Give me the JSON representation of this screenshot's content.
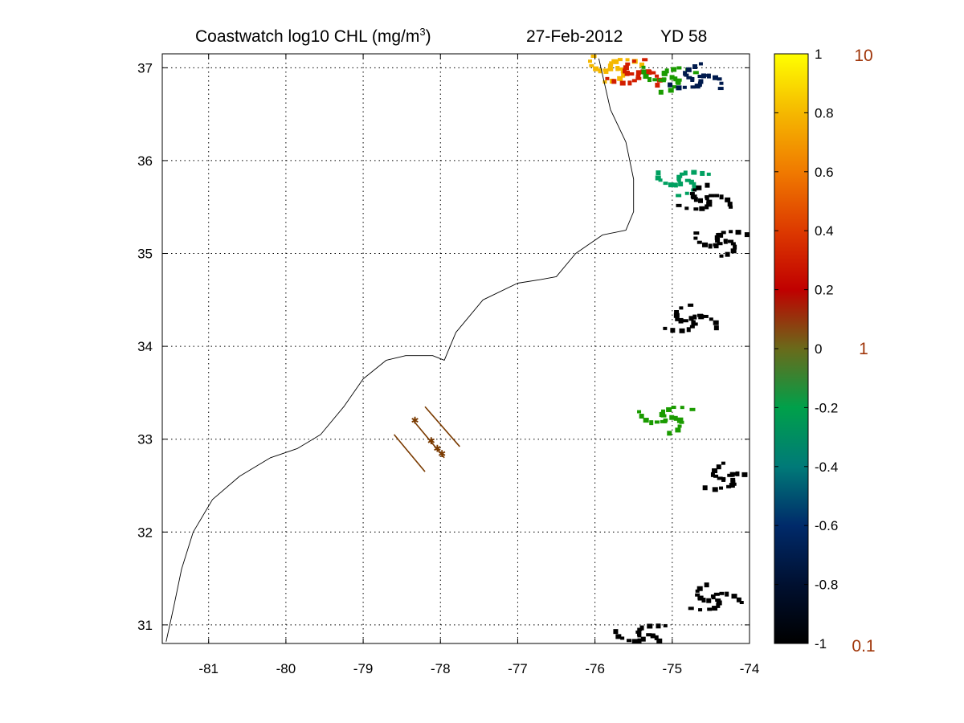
{
  "header": {
    "title_prefix": "Coastwatch  log10  CHL (mg/m",
    "title_superscript": "3",
    "title_suffix": ")",
    "date": "27-Feb-2012",
    "year_day": "YD 58"
  },
  "map": {
    "lon_range": [
      -81.6,
      -74
    ],
    "lat_range": [
      30.8,
      37.15
    ],
    "x_ticks": [
      -81,
      -80,
      -79,
      -78,
      -77,
      -76,
      -75,
      -74
    ],
    "x_tick_labels": [
      "-81",
      "-80",
      "-79",
      "-78",
      "-77",
      "-76",
      "-75",
      "-74"
    ],
    "y_ticks": [
      31,
      32,
      33,
      34,
      35,
      36,
      37
    ],
    "y_tick_labels": [
      "31",
      "32",
      "33",
      "34",
      "35",
      "36",
      "37"
    ],
    "grid": true,
    "coastline": [
      [
        -81.55,
        30.82
      ],
      [
        -81.45,
        31.2
      ],
      [
        -81.35,
        31.6
      ],
      [
        -81.2,
        32.0
      ],
      [
        -80.95,
        32.35
      ],
      [
        -80.6,
        32.6
      ],
      [
        -80.2,
        32.8
      ],
      [
        -79.85,
        32.9
      ],
      [
        -79.55,
        33.05
      ],
      [
        -79.25,
        33.35
      ],
      [
        -79.0,
        33.65
      ],
      [
        -78.7,
        33.85
      ],
      [
        -78.45,
        33.9
      ],
      [
        -78.1,
        33.9
      ],
      [
        -77.95,
        33.85
      ],
      [
        -77.8,
        34.15
      ],
      [
        -77.45,
        34.5
      ],
      [
        -77.0,
        34.68
      ],
      [
        -76.7,
        34.72
      ],
      [
        -76.5,
        34.75
      ],
      [
        -76.25,
        35.0
      ],
      [
        -75.9,
        35.2
      ],
      [
        -75.6,
        35.25
      ],
      [
        -75.5,
        35.45
      ],
      [
        -75.5,
        35.8
      ],
      [
        -75.6,
        36.2
      ],
      [
        -75.8,
        36.55
      ],
      [
        -75.95,
        37.1
      ]
    ],
    "tracks": [
      {
        "start": [
          -78.6,
          33.05
        ],
        "end": [
          -78.2,
          32.65
        ]
      },
      {
        "start": [
          -78.35,
          33.2
        ],
        "end": [
          -77.95,
          32.8
        ]
      },
      {
        "start": [
          -78.2,
          33.35
        ],
        "end": [
          -77.75,
          32.92
        ]
      }
    ],
    "stations": [
      {
        "lon": -78.33,
        "lat": 33.2
      },
      {
        "lon": -78.12,
        "lat": 32.98
      },
      {
        "lon": -78.04,
        "lat": 32.9
      },
      {
        "lon": -77.98,
        "lat": 32.84
      }
    ],
    "chl_patches": [
      {
        "lon": -75.8,
        "lat": 37.02,
        "value": 0.75
      },
      {
        "lon": -75.5,
        "lat": 36.95,
        "value": 0.3
      },
      {
        "lon": -75.1,
        "lat": 36.92,
        "value": -0.25
      },
      {
        "lon": -74.7,
        "lat": 36.9,
        "value": -0.65
      },
      {
        "lon": -74.9,
        "lat": 35.8,
        "value": -0.5
      },
      {
        "lon": -74.6,
        "lat": 35.6,
        "value": -0.95
      },
      {
        "lon": -74.4,
        "lat": 35.15,
        "value": -1.0
      },
      {
        "lon": -74.8,
        "lat": 34.3,
        "value": -0.9
      },
      {
        "lon": -75.1,
        "lat": 33.25,
        "value": -0.35
      },
      {
        "lon": -74.3,
        "lat": 32.6,
        "value": -1.0
      },
      {
        "lon": -75.4,
        "lat": 30.9,
        "value": -1.0
      },
      {
        "lon": -74.5,
        "lat": 31.3,
        "value": -1.0
      }
    ]
  },
  "colorbar": {
    "range": [
      -1,
      1
    ],
    "ticks": [
      "1",
      "0.8",
      "0.6",
      "0.4",
      "0.2",
      "0",
      "-0.2",
      "-0.4",
      "-0.6",
      "-0.8",
      "-1"
    ],
    "tick_values": [
      1,
      0.8,
      0.6,
      0.4,
      0.2,
      0,
      -0.2,
      -0.4,
      -0.6,
      -0.8,
      -1
    ],
    "scale_labels": [
      "10",
      "1",
      "0.1"
    ],
    "scale_values": [
      1,
      0,
      -1
    ],
    "scale_label_color": "#a0360a",
    "colors": [
      "#000000",
      "#001a4d",
      "#00a060",
      "#1a9b00",
      "#7a5a00",
      "#d21e00",
      "#e96a00",
      "#f5b800",
      "#ffff00"
    ]
  }
}
